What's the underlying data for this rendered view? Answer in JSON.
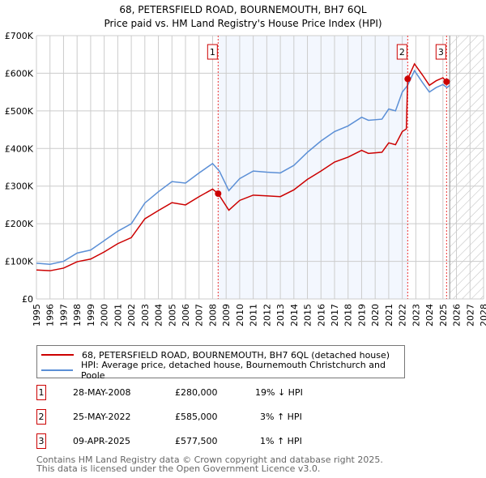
{
  "title": "68, PETERSFIELD ROAD, BOURNEMOUTH, BH7 6QL",
  "subtitle": "Price paid vs. HM Land Registry's House Price Index (HPI)",
  "chart_data": {
    "type": "line",
    "xlim": [
      1995,
      2028
    ],
    "ylim": [
      0,
      700000
    ],
    "yticks": [
      {
        "v": 0,
        "label": "£0"
      },
      {
        "v": 100000,
        "label": "£100K"
      },
      {
        "v": 200000,
        "label": "£200K"
      },
      {
        "v": 300000,
        "label": "£300K"
      },
      {
        "v": 400000,
        "label": "£400K"
      },
      {
        "v": 500000,
        "label": "£500K"
      },
      {
        "v": 600000,
        "label": "£600K"
      },
      {
        "v": 700000,
        "label": "£700K"
      }
    ],
    "xticks": [
      "1995",
      "1996",
      "1997",
      "1998",
      "1999",
      "2000",
      "2001",
      "2002",
      "2003",
      "2004",
      "2005",
      "2006",
      "2007",
      "2008",
      "2009",
      "2010",
      "2011",
      "2012",
      "2013",
      "2014",
      "2015",
      "2016",
      "2017",
      "2018",
      "2019",
      "2020",
      "2021",
      "2022",
      "2023",
      "2024",
      "2025",
      "2026",
      "2027",
      "2028"
    ],
    "shaded_range": [
      2008.41,
      2022.4
    ],
    "forecast_hatch_from": 2025.5,
    "series": [
      {
        "name": "68, PETERSFIELD ROAD, BOURNEMOUTH, BH7 6QL (detached house)",
        "color": "#cc0000",
        "x": [
          1995,
          1996,
          1997,
          1998,
          1999,
          2000,
          2001,
          2002,
          2003,
          2004,
          2005,
          2006,
          2007,
          2008,
          2008.41,
          2009.2,
          2010,
          2011,
          2012,
          2013,
          2014,
          2015,
          2016,
          2017,
          2018,
          2019,
          2019.5,
          2020.5,
          2021,
          2021.5,
          2022,
          2022.3,
          2022.4,
          2022.9,
          2023.5,
          2024,
          2024.5,
          2025,
          2025.27,
          2025.4
        ],
        "y": [
          77000,
          75000,
          82000,
          99000,
          106000,
          125000,
          147000,
          163000,
          213000,
          235000,
          256000,
          250000,
          272000,
          292000,
          280000,
          236000,
          262000,
          276000,
          274000,
          272000,
          290000,
          318000,
          340000,
          364000,
          377000,
          395000,
          387000,
          390000,
          415000,
          410000,
          445000,
          452000,
          585000,
          625000,
          595000,
          568000,
          580000,
          588000,
          577500,
          578000
        ]
      },
      {
        "name": "HPI: Average price, detached house, Bournemouth Christchurch and Poole",
        "color": "#5b8fd6",
        "x": [
          1995,
          1996,
          1997,
          1998,
          1999,
          2000,
          2001,
          2002,
          2003,
          2004,
          2005,
          2006,
          2007,
          2008,
          2008.5,
          2009.2,
          2010,
          2011,
          2012,
          2013,
          2014,
          2015,
          2016,
          2017,
          2018,
          2019,
          2019.5,
          2020.5,
          2021,
          2021.5,
          2022,
          2022.4,
          2022.9,
          2023.5,
          2024,
          2024.5,
          2025,
          2025.3,
          2025.5
        ],
        "y": [
          95000,
          92000,
          100000,
          122000,
          130000,
          155000,
          180000,
          200000,
          255000,
          285000,
          312000,
          308000,
          335000,
          360000,
          340000,
          288000,
          320000,
          340000,
          337000,
          335000,
          355000,
          390000,
          420000,
          445000,
          460000,
          483000,
          475000,
          478000,
          505000,
          500000,
          550000,
          568000,
          607000,
          575000,
          550000,
          562000,
          570000,
          562000,
          568000
        ]
      }
    ],
    "sales": [
      {
        "n": "1",
        "x": 2008.41,
        "y": 280000
      },
      {
        "n": "2",
        "x": 2022.4,
        "y": 585000
      },
      {
        "n": "3",
        "x": 2025.27,
        "y": 577500
      }
    ]
  },
  "legend": {
    "property": "68, PETERSFIELD ROAD, BOURNEMOUTH, BH7 6QL (detached house)",
    "hpi": "HPI: Average price, detached house, Bournemouth Christchurch and Poole"
  },
  "transactions": [
    {
      "n": "1",
      "date": "28-MAY-2008",
      "price": "£280,000",
      "hpi": "19% ↓ HPI"
    },
    {
      "n": "2",
      "date": "25-MAY-2022",
      "price": "£585,000",
      "hpi": "3% ↑ HPI"
    },
    {
      "n": "3",
      "date": "09-APR-2025",
      "price": "£577,500",
      "hpi": "1% ↑ HPI"
    }
  ],
  "footer": [
    "Contains HM Land Registry data © Crown copyright and database right 2025.",
    "This data is licensed under the Open Government Licence v3.0."
  ]
}
